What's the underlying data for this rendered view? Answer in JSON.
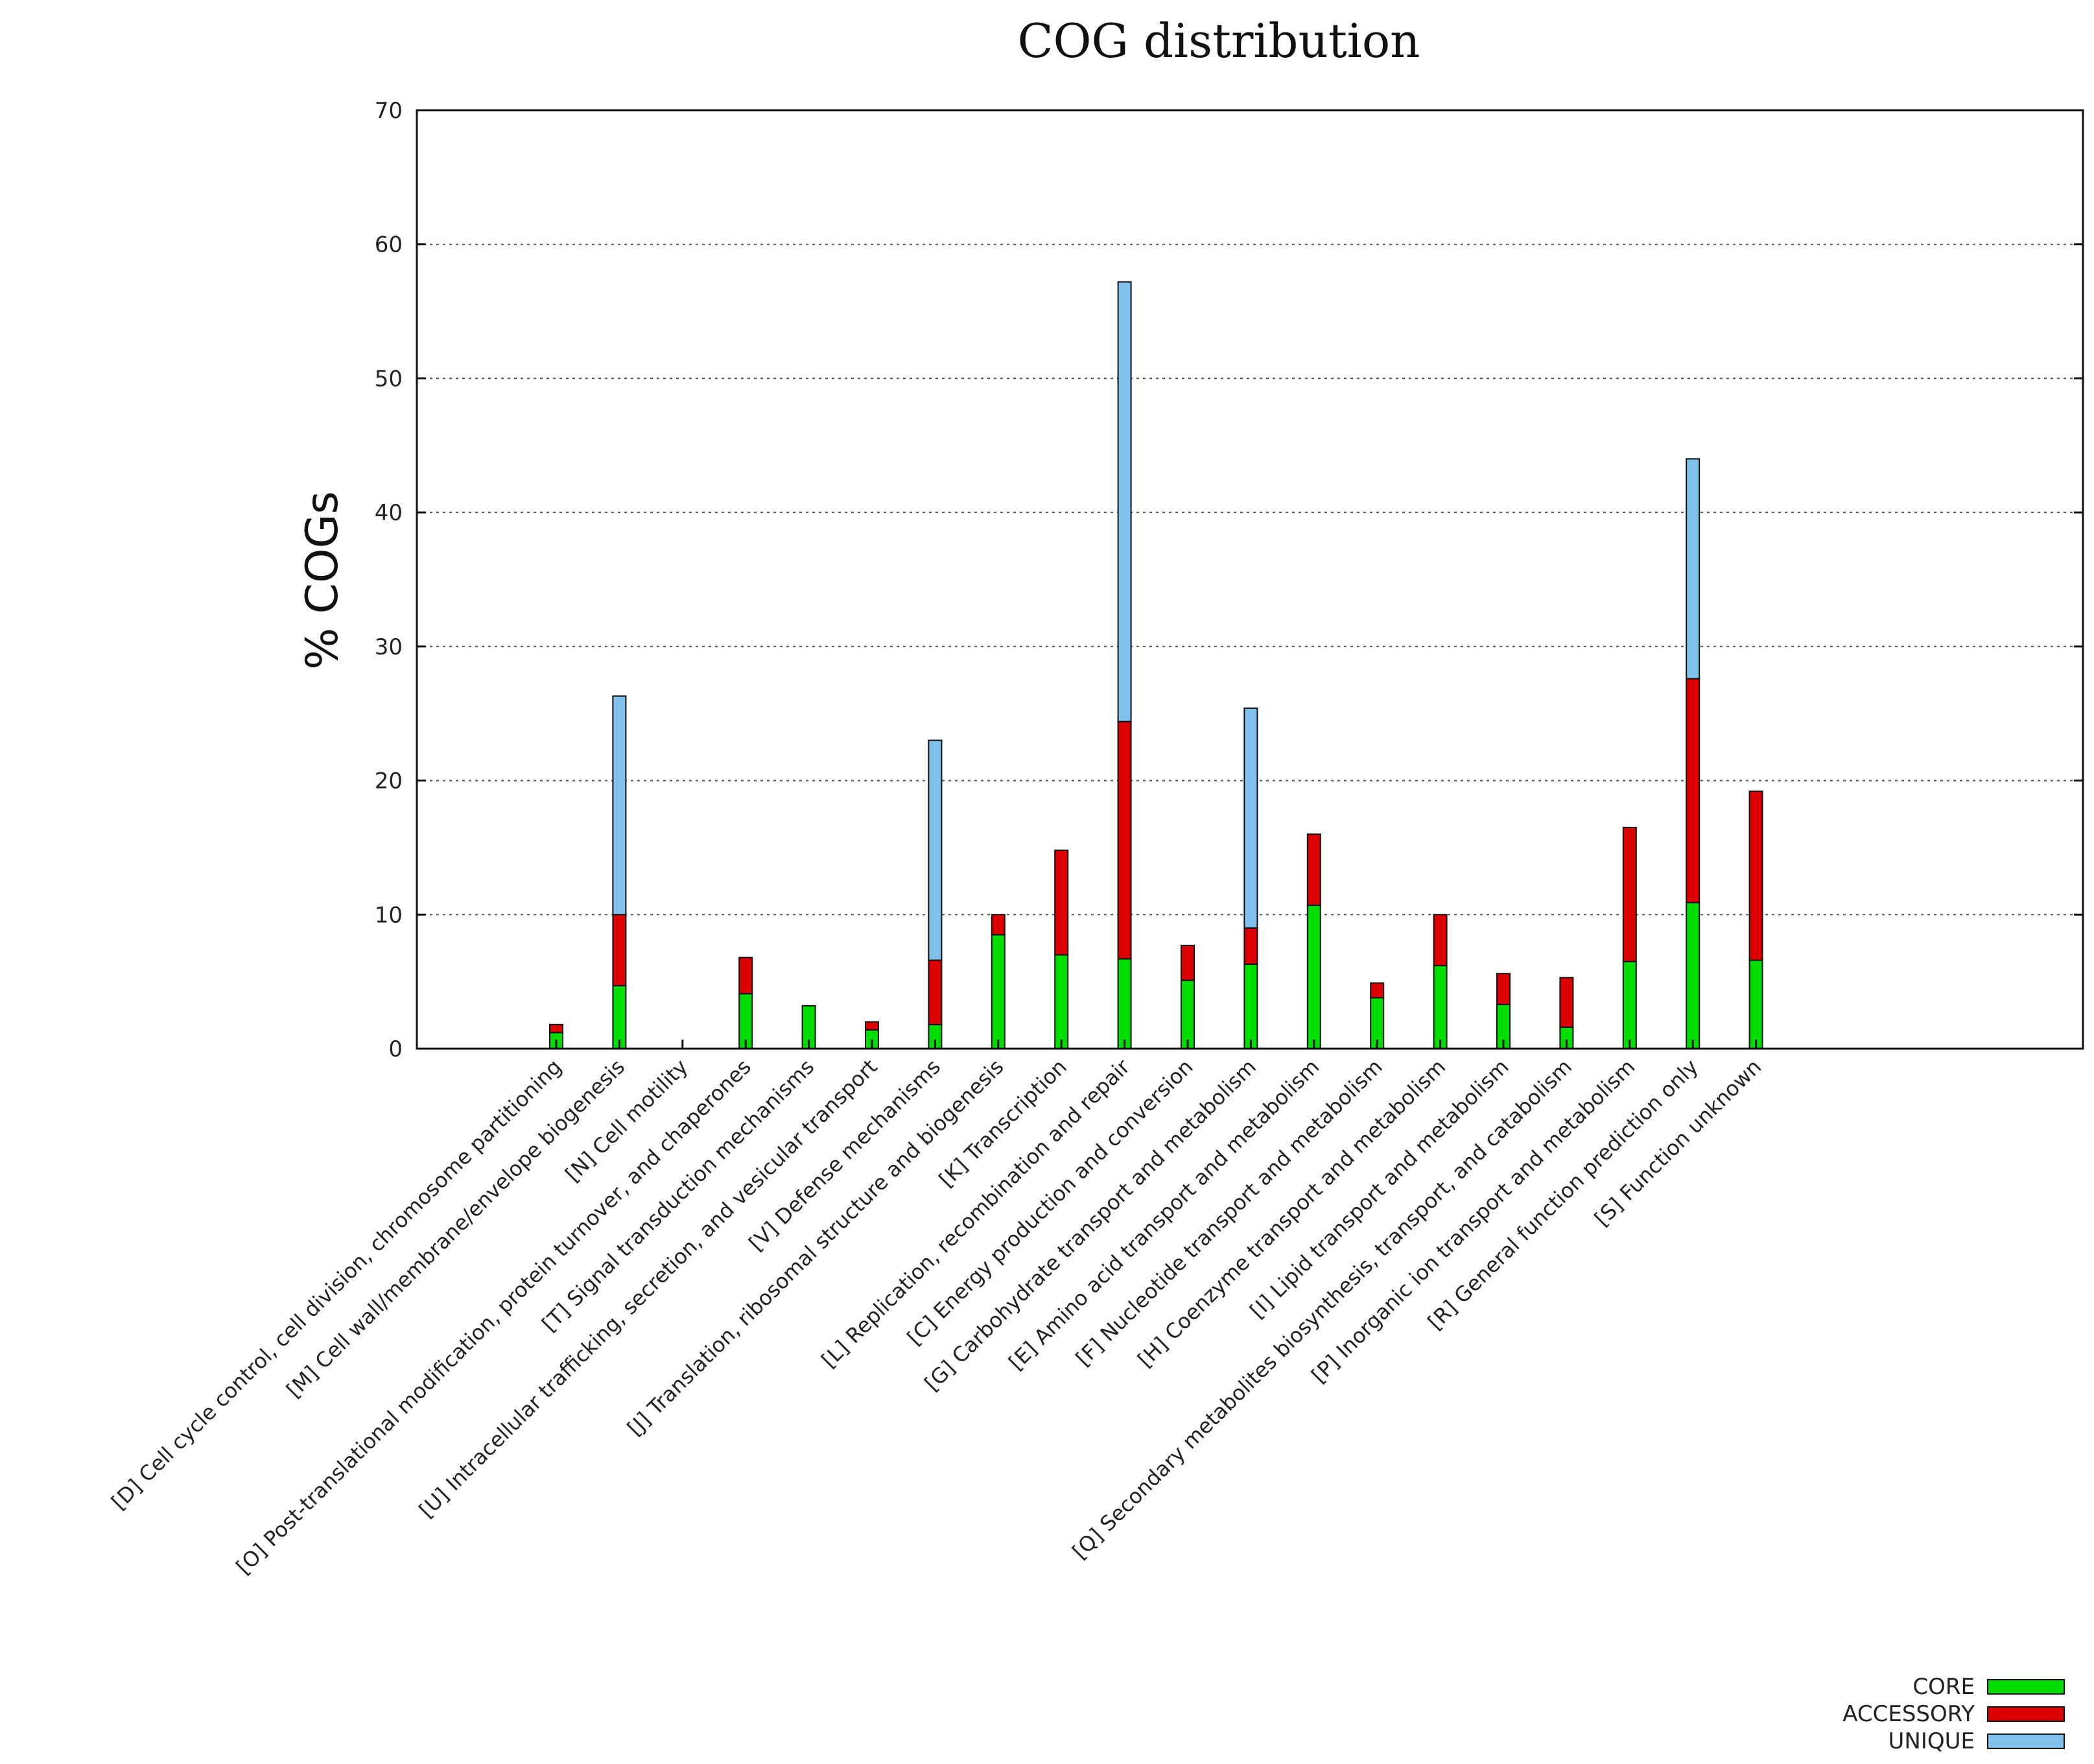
{
  "chart_data": {
    "type": "bar",
    "stacked": true,
    "title": "COG distribution",
    "xlabel": "",
    "ylabel": "% COGs",
    "ylim": [
      0,
      70
    ],
    "yticks": [
      0,
      10,
      20,
      30,
      40,
      50,
      60,
      70
    ],
    "grid": true,
    "legend_position": "bottom-right",
    "categories": [
      "[D] Cell cycle control, cell division, chromosome partitioning",
      "[M] Cell wall/membrane/envelope biogenesis",
      "[N] Cell motility",
      "[O] Post-translational modification, protein turnover, and chaperones",
      "[T] Signal transduction mechanisms",
      "[U] Intracellular trafficking, secretion, and vesicular transport",
      "[V] Defense mechanisms",
      "[J] Translation, ribosomal structure and biogenesis",
      "[K] Transcription",
      "[L] Replication, recombination and repair",
      "[C] Energy production and conversion",
      "[G] Carbohydrate transport and metabolism",
      "[E] Amino acid transport and metabolism",
      "[F] Nucleotide transport and metabolism",
      "[H] Coenzyme transport and metabolism",
      "[I] Lipid transport and metabolism",
      "[Q] Secondary metabolites biosynthesis, transport, and catabolism",
      "[P] Inorganic ion transport and metabolism",
      "[R] General function prediction only",
      "[S] Function unknown"
    ],
    "series": [
      {
        "name": "CORE",
        "color": "#00dd00",
        "values": [
          1.2,
          4.7,
          0.0,
          4.1,
          3.2,
          1.4,
          1.8,
          8.5,
          7.0,
          6.7,
          5.1,
          6.3,
          10.7,
          3.8,
          6.2,
          3.3,
          1.6,
          6.5,
          10.9,
          6.6
        ]
      },
      {
        "name": "ACCESSORY",
        "color": "#dd0000",
        "values": [
          0.6,
          5.3,
          0.0,
          2.7,
          0.0,
          0.6,
          4.8,
          1.5,
          7.8,
          17.7,
          2.6,
          2.7,
          5.3,
          1.1,
          3.8,
          2.3,
          3.7,
          10.0,
          16.7,
          12.6
        ]
      },
      {
        "name": "UNIQUE",
        "color": "#7fc1ea",
        "values": [
          0.0,
          16.3,
          0.0,
          0.0,
          0.0,
          0.0,
          16.4,
          0.0,
          0.0,
          32.8,
          0.0,
          16.4,
          0.0,
          0.0,
          0.0,
          0.0,
          0.0,
          0.0,
          16.4,
          0.0
        ]
      }
    ]
  }
}
